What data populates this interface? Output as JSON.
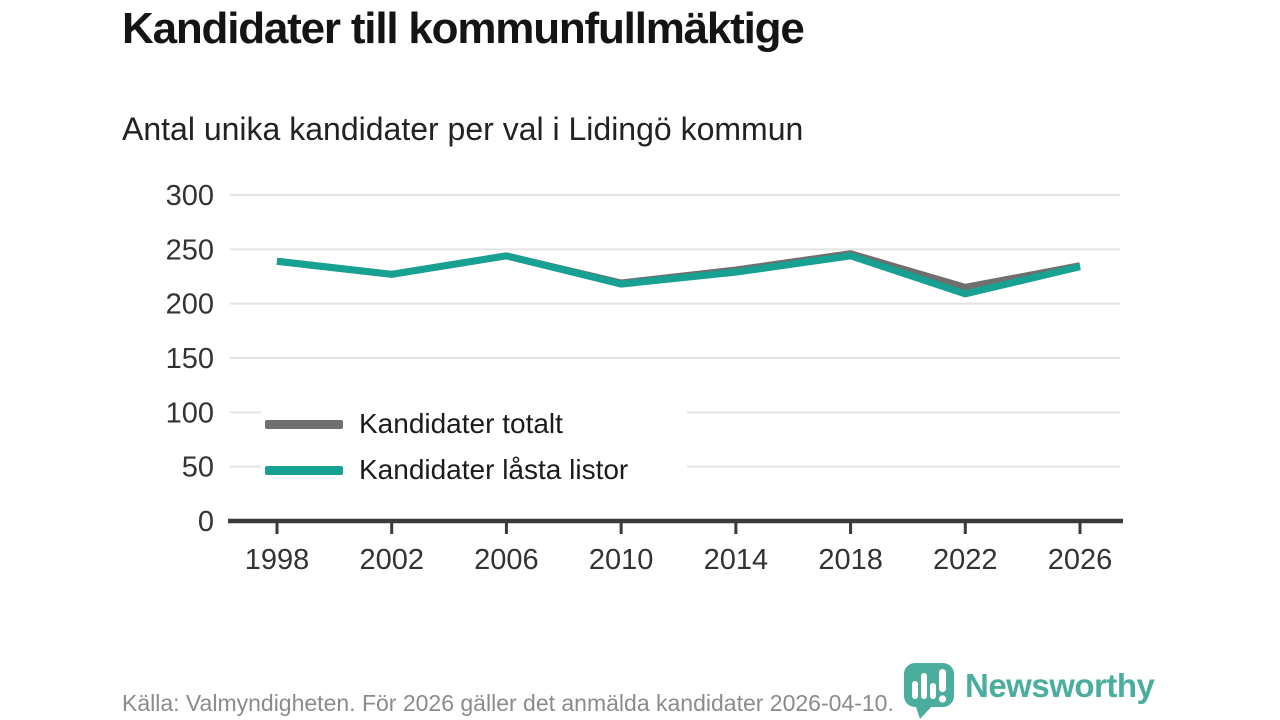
{
  "chart_data": {
    "type": "line",
    "title": "Kandidater till kommunfullmäktige",
    "subtitle": "Antal unika kandidater per val i Lidingö kommun",
    "x": [
      1998,
      2002,
      2006,
      2010,
      2014,
      2018,
      2022,
      2026
    ],
    "series": [
      {
        "name": "Kandidater totalt",
        "color": "#6f6f6f",
        "values": [
          239,
          227,
          244,
          219,
          231,
          246,
          215,
          235
        ]
      },
      {
        "name": "Kandidater låsta listor",
        "color": "#16a192",
        "values": [
          239,
          227,
          244,
          218,
          229,
          244,
          209,
          234
        ]
      }
    ],
    "ylim": [
      0,
      300
    ],
    "yticks": [
      0,
      50,
      100,
      150,
      200,
      250,
      300
    ],
    "grid": true,
    "legend_position": "inside left middle",
    "xlabel": "",
    "ylabel": ""
  },
  "footer": {
    "source": "Källa: Valmyndigheten. För 2026 gäller det anmälda kandidater 2026-04-10."
  },
  "brand": {
    "name": "Newsworthy",
    "logo_icon": "speech-bubble-bar-chart-exclamation",
    "color": "#3ba795"
  },
  "colors": {
    "background": "#ffffff",
    "grid": "#e3e3e3",
    "axis": "#3a3a3a",
    "tick_label": "#333333",
    "title": "#141414",
    "subtitle": "#222222",
    "footer_text": "#8b8b8b"
  }
}
